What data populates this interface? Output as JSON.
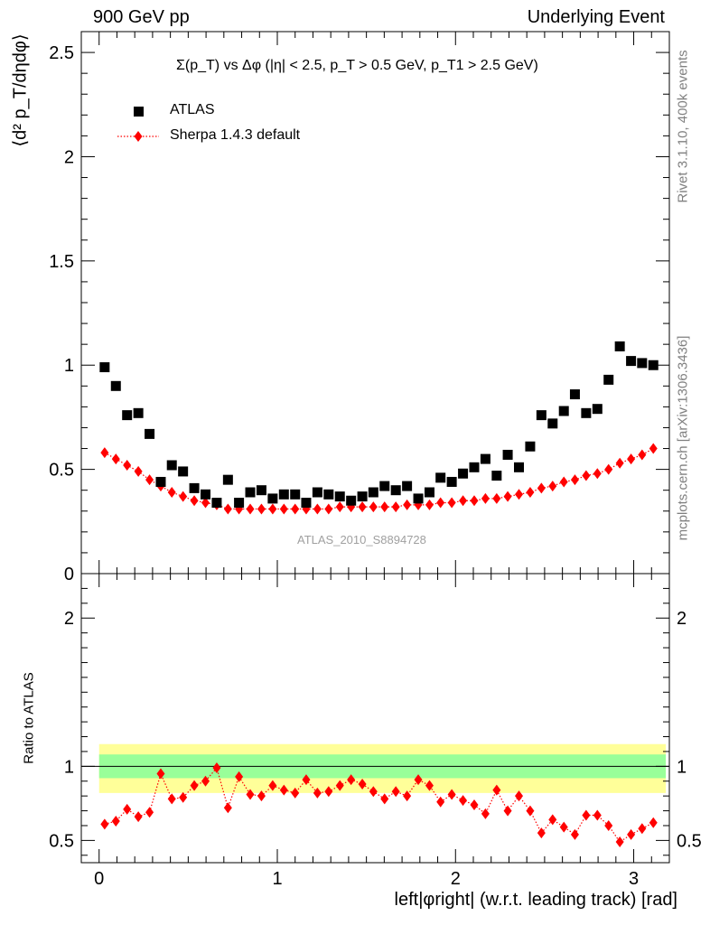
{
  "header": {
    "left": "900 GeV pp",
    "right": "Underlying Event"
  },
  "side_text": {
    "rivet": "Rivet 3.1.10,  400k events",
    "mcplots": "mcplots.cern.ch [arXiv:1306.3436]"
  },
  "colors": {
    "data": "#000000",
    "mc": "#ff0000",
    "band_inner": "#99ff99",
    "band_outer": "#ffff99",
    "watermark": "#a0a0a0",
    "side_text": "#808080"
  },
  "chart_data": [
    {
      "type": "scatter",
      "title": "Σ(p_T) vs Δφ (|η| < 2.5, p_T > 0.5 GeV, p_T1 > 2.5 GeV)",
      "ylabel": "⟨d² p_T/dηdφ⟩",
      "xlim": [
        -0.1,
        3.2
      ],
      "ylim": [
        0,
        2.6
      ],
      "y_ticks": [
        0,
        0.5,
        1,
        1.5,
        2,
        2.5
      ],
      "y_tick_labels": [
        "0",
        "0.5",
        "1",
        "1.5",
        "2",
        "2.5"
      ],
      "watermark": "ATLAS_2010_S8894728",
      "legend": {
        "placement": "top-left",
        "entries": [
          "ATLAS",
          "Sherpa 1.4.3 default"
        ]
      },
      "x": [
        0.031,
        0.094,
        0.157,
        0.22,
        0.283,
        0.346,
        0.408,
        0.471,
        0.534,
        0.597,
        0.66,
        0.723,
        0.785,
        0.848,
        0.911,
        0.974,
        1.037,
        1.1,
        1.162,
        1.225,
        1.288,
        1.351,
        1.414,
        1.477,
        1.539,
        1.602,
        1.665,
        1.728,
        1.791,
        1.854,
        1.916,
        1.979,
        2.042,
        2.105,
        2.168,
        2.231,
        2.293,
        2.356,
        2.419,
        2.482,
        2.545,
        2.608,
        2.67,
        2.733,
        2.796,
        2.859,
        2.922,
        2.985,
        3.047,
        3.11
      ],
      "series": [
        {
          "name": "ATLAS",
          "marker": "square",
          "values": [
            0.99,
            0.9,
            0.76,
            0.77,
            0.67,
            0.44,
            0.52,
            0.49,
            0.41,
            0.38,
            0.34,
            0.45,
            0.34,
            0.39,
            0.4,
            0.36,
            0.38,
            0.38,
            0.34,
            0.39,
            0.38,
            0.37,
            0.35,
            0.37,
            0.39,
            0.42,
            0.4,
            0.42,
            0.36,
            0.39,
            0.46,
            0.44,
            0.48,
            0.51,
            0.55,
            0.47,
            0.57,
            0.51,
            0.61,
            0.76,
            0.72,
            0.78,
            0.86,
            0.77,
            0.79,
            0.93,
            1.09,
            1.02,
            1.01,
            1.0
          ]
        },
        {
          "name": "Sherpa 1.4.3 default",
          "marker": "diamond",
          "values": [
            0.58,
            0.55,
            0.52,
            0.49,
            0.45,
            0.42,
            0.39,
            0.37,
            0.35,
            0.34,
            0.33,
            0.31,
            0.31,
            0.31,
            0.31,
            0.31,
            0.31,
            0.31,
            0.31,
            0.31,
            0.31,
            0.32,
            0.32,
            0.32,
            0.32,
            0.32,
            0.32,
            0.33,
            0.33,
            0.33,
            0.34,
            0.34,
            0.35,
            0.35,
            0.36,
            0.36,
            0.37,
            0.38,
            0.39,
            0.41,
            0.42,
            0.44,
            0.45,
            0.47,
            0.48,
            0.5,
            0.53,
            0.55,
            0.57,
            0.6
          ]
        }
      ]
    },
    {
      "type": "line",
      "ylabel": "Ratio to ATLAS",
      "xlabel": "left|φright| (w.r.t. leading track) [rad]",
      "xlim": [
        -0.1,
        3.2
      ],
      "ylim": [
        0.35,
        2.3
      ],
      "x_ticks": [
        0,
        1,
        2,
        3
      ],
      "x_tick_labels": [
        "0",
        "1",
        "2",
        "3"
      ],
      "y_ticks": [
        0.5,
        1,
        2
      ],
      "y_tick_labels": [
        "0.5",
        "1",
        "2"
      ],
      "reference_line": 1,
      "uncertainty_band": {
        "inner": [
          0.92,
          1.08
        ],
        "outer": [
          0.82,
          1.15
        ]
      },
      "series": [
        {
          "name": "Sherpa 1.4.3 default",
          "values": [
            0.61,
            0.63,
            0.71,
            0.66,
            0.69,
            0.95,
            0.78,
            0.79,
            0.87,
            0.9,
            0.99,
            0.72,
            0.93,
            0.81,
            0.8,
            0.87,
            0.84,
            0.82,
            0.91,
            0.82,
            0.83,
            0.87,
            0.91,
            0.88,
            0.83,
            0.78,
            0.83,
            0.8,
            0.91,
            0.87,
            0.76,
            0.81,
            0.77,
            0.74,
            0.68,
            0.84,
            0.7,
            0.8,
            0.7,
            0.55,
            0.64,
            0.59,
            0.54,
            0.67,
            0.67,
            0.6,
            0.49,
            0.54,
            0.58,
            0.62
          ]
        }
      ]
    }
  ]
}
